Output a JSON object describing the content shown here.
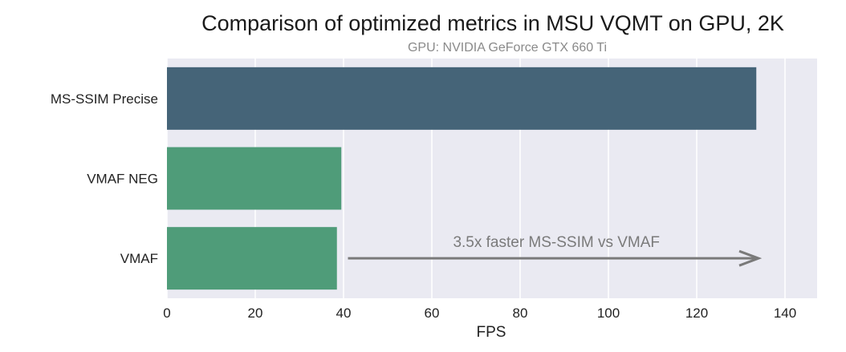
{
  "chart_data": {
    "type": "bar",
    "orientation": "horizontal",
    "title": "Comparison of optimized metrics in MSU VQMT on GPU, 2K",
    "subtitle": "GPU: NVIDIA GeForce GTX 660 Ti",
    "xlabel": "FPS",
    "ylabel": "",
    "xlim": [
      0,
      147
    ],
    "xticks": [
      0,
      20,
      40,
      60,
      80,
      100,
      120,
      140
    ],
    "grid": true,
    "categories": [
      "MS-SSIM Precise",
      "VMAF NEG",
      "VMAF"
    ],
    "values": [
      133.5,
      39.5,
      38.5
    ],
    "bar_colors": [
      "#456478",
      "#4f9c79",
      "#4f9c79"
    ],
    "annotation": {
      "text": "3.5x faster MS-SSIM vs VMAF",
      "arrow_from": 41,
      "arrow_to": 134
    }
  },
  "colors": {
    "plot_background": "#eaeaf2",
    "grid": "#ffffff",
    "arrow": "#7a7a7a"
  }
}
